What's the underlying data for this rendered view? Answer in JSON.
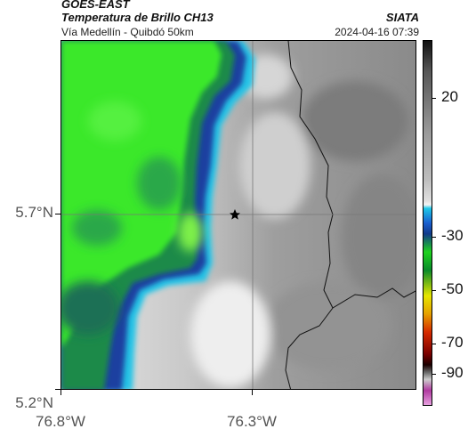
{
  "header": {
    "satellite": "GOES-EAST",
    "product": "Temperatura de Brillo CH13",
    "region": "Vía Medellín - Quibdó 50km",
    "brand": "SIATA",
    "timestamp": "2024-04-16 07:39"
  },
  "map": {
    "y_ticks": [
      {
        "label": "5.7°N",
        "lat": 5.7
      },
      {
        "label": "5.2°N",
        "lat": 5.2
      }
    ],
    "x_ticks": [
      {
        "label": "76.8°W",
        "lon": -76.8
      },
      {
        "label": "76.3°W",
        "lon": -76.3
      }
    ],
    "marker": "star-icon",
    "gridlines": true
  },
  "colorbar": {
    "labels": [
      "20",
      "-30",
      "-50",
      "-70",
      "-90"
    ],
    "colors": {
      "warm_top": "#111111",
      "gray_mid": "#bdbdbd",
      "cyan": "#1ec8e8",
      "green": "#1fd31f",
      "yellow": "#e6e600",
      "red": "#d62a00",
      "dark": "#1a0000",
      "magenta": "#b03aa0"
    }
  },
  "palette": {
    "cloud_green": "#3be82a",
    "cloud_dark_green": "#1b8a4a",
    "cloud_blue": "#1a3fa0",
    "cloud_cyan": "#27c4e6",
    "cloud_white": "#f2f2f2",
    "land_gray": "#8f8f8f"
  }
}
